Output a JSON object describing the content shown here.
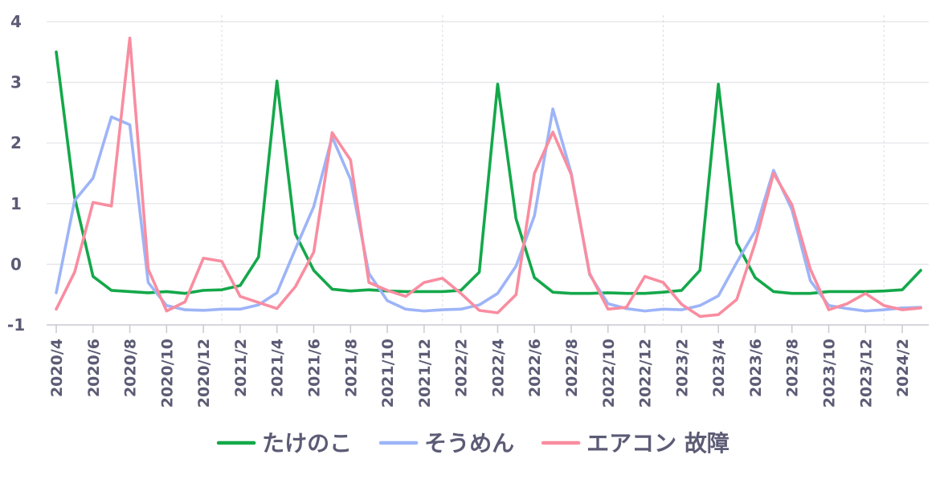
{
  "chart_data": {
    "type": "line",
    "title": "",
    "xlabel": "",
    "ylabel": "",
    "ylim": [
      -1,
      4
    ],
    "yticks": [
      -1,
      0,
      1,
      2,
      3,
      4
    ],
    "grid": true,
    "legend_position": "bottom",
    "x": [
      "2020/4",
      "2020/5",
      "2020/6",
      "2020/7",
      "2020/8",
      "2020/9",
      "2020/10",
      "2020/11",
      "2020/12",
      "2021/1",
      "2021/2",
      "2021/3",
      "2021/4",
      "2021/5",
      "2021/6",
      "2021/7",
      "2021/8",
      "2021/9",
      "2021/10",
      "2021/11",
      "2021/12",
      "2022/1",
      "2022/2",
      "2022/3",
      "2022/4",
      "2022/5",
      "2022/6",
      "2022/7",
      "2022/8",
      "2022/9",
      "2022/10",
      "2022/11",
      "2022/12",
      "2023/1",
      "2023/2",
      "2023/3",
      "2023/4",
      "2023/5",
      "2023/6",
      "2023/7",
      "2023/8",
      "2023/9",
      "2023/10",
      "2023/11",
      "2023/12",
      "2024/1",
      "2024/2",
      "2024/3"
    ],
    "xtick_labels": [
      "2020/4",
      "2020/6",
      "2020/8",
      "2020/10",
      "2020/12",
      "2021/2",
      "2021/4",
      "2021/6",
      "2021/8",
      "2021/10",
      "2021/12",
      "2022/2",
      "2022/4",
      "2022/6",
      "2022/8",
      "2022/10",
      "2022/12",
      "2023/2",
      "2023/4",
      "2023/6",
      "2023/8",
      "2023/10",
      "2023/12",
      "2024/2"
    ],
    "series": [
      {
        "name": "たけのこ",
        "color": "#14a84a",
        "values": [
          3.5,
          1.1,
          -0.2,
          -0.43,
          -0.45,
          -0.47,
          -0.45,
          -0.48,
          -0.43,
          -0.42,
          -0.35,
          0.12,
          3.02,
          0.5,
          -0.1,
          -0.41,
          -0.44,
          -0.42,
          -0.44,
          -0.45,
          -0.45,
          -0.45,
          -0.43,
          -0.13,
          2.97,
          0.75,
          -0.22,
          -0.46,
          -0.48,
          -0.48,
          -0.47,
          -0.48,
          -0.48,
          -0.46,
          -0.43,
          -0.1,
          2.97,
          0.35,
          -0.22,
          -0.45,
          -0.48,
          -0.48,
          -0.45,
          -0.45,
          -0.45,
          -0.44,
          -0.42,
          -0.1
        ]
      },
      {
        "name": "そうめん",
        "color": "#9db4f7",
        "values": [
          -0.47,
          1.05,
          1.42,
          2.43,
          2.3,
          -0.3,
          -0.68,
          -0.75,
          -0.76,
          -0.74,
          -0.74,
          -0.67,
          -0.47,
          0.25,
          0.95,
          2.1,
          1.4,
          -0.15,
          -0.6,
          -0.74,
          -0.77,
          -0.75,
          -0.74,
          -0.67,
          -0.48,
          -0.03,
          0.8,
          2.56,
          1.5,
          -0.17,
          -0.65,
          -0.73,
          -0.77,
          -0.74,
          -0.75,
          -0.68,
          -0.52,
          0.03,
          0.55,
          1.55,
          0.9,
          -0.27,
          -0.68,
          -0.73,
          -0.77,
          -0.75,
          -0.72,
          -0.71
        ]
      },
      {
        "name": "エアコン 故障",
        "color": "#f98da0",
        "values": [
          -0.74,
          -0.13,
          1.02,
          0.96,
          3.73,
          -0.08,
          -0.77,
          -0.62,
          0.1,
          0.05,
          -0.53,
          -0.63,
          -0.73,
          -0.37,
          0.2,
          2.17,
          1.72,
          -0.3,
          -0.43,
          -0.53,
          -0.3,
          -0.23,
          -0.48,
          -0.76,
          -0.8,
          -0.5,
          1.5,
          2.18,
          1.48,
          -0.15,
          -0.74,
          -0.71,
          -0.2,
          -0.3,
          -0.66,
          -0.86,
          -0.83,
          -0.58,
          0.35,
          1.5,
          0.98,
          -0.08,
          -0.75,
          -0.65,
          -0.48,
          -0.68,
          -0.75,
          -0.72
        ]
      }
    ]
  }
}
